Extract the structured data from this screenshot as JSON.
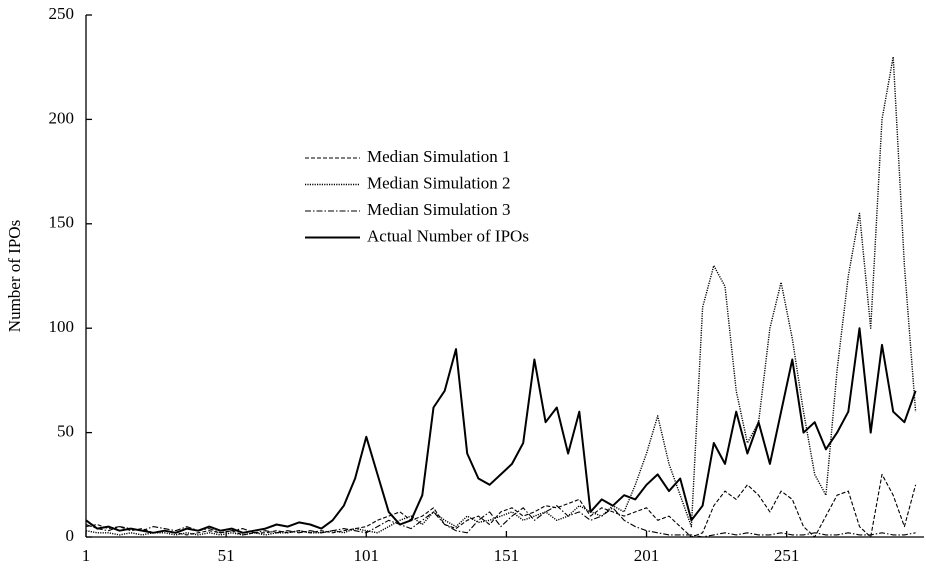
{
  "chart_data": {
    "type": "line",
    "y_label": "Number of IPOs",
    "x": [
      1,
      5,
      9,
      13,
      17,
      21,
      25,
      29,
      33,
      37,
      41,
      45,
      49,
      53,
      57,
      61,
      65,
      69,
      73,
      77,
      81,
      85,
      89,
      93,
      97,
      101,
      105,
      109,
      113,
      117,
      121,
      125,
      129,
      133,
      137,
      141,
      145,
      149,
      153,
      157,
      161,
      165,
      169,
      173,
      177,
      181,
      185,
      189,
      193,
      197,
      201,
      205,
      209,
      213,
      217,
      221,
      225,
      229,
      233,
      237,
      241,
      245,
      249,
      253,
      257,
      261,
      265,
      269,
      273,
      277,
      281,
      285,
      289,
      293,
      297
    ],
    "series": [
      {
        "name": "Median Simulation 1",
        "color": "#000000",
        "style": "dashed",
        "values": [
          5,
          6,
          4,
          5,
          3,
          4,
          2,
          3,
          2,
          1,
          2,
          3,
          2,
          3,
          1,
          2,
          2,
          3,
          2,
          3,
          2,
          3,
          2,
          3,
          4,
          5,
          8,
          10,
          12,
          8,
          10,
          14,
          6,
          4,
          8,
          10,
          6,
          12,
          14,
          10,
          12,
          15,
          14,
          16,
          18,
          10,
          14,
          12,
          10,
          12,
          14,
          8,
          10,
          5,
          0,
          2,
          15,
          22,
          18,
          25,
          20,
          12,
          22,
          18,
          5,
          0,
          10,
          20,
          22,
          5,
          0,
          30,
          20,
          5,
          25
        ]
      },
      {
        "name": "Median Simulation 2",
        "color": "#000000",
        "style": "dotted",
        "values": [
          3,
          2,
          2,
          1,
          2,
          1,
          2,
          2,
          1,
          2,
          1,
          2,
          1,
          2,
          1,
          2,
          1,
          2,
          2,
          3,
          2,
          2,
          3,
          2,
          4,
          3,
          2,
          5,
          8,
          10,
          6,
          12,
          8,
          5,
          10,
          7,
          8,
          10,
          12,
          8,
          10,
          12,
          8,
          10,
          15,
          12,
          10,
          15,
          12,
          25,
          40,
          58,
          35,
          20,
          5,
          110,
          130,
          120,
          70,
          45,
          55,
          100,
          122,
          95,
          60,
          30,
          20,
          80,
          125,
          155,
          100,
          200,
          230,
          130,
          60
        ]
      },
      {
        "name": "Median Simulation 3",
        "color": "#000000",
        "style": "dashdot",
        "values": [
          6,
          4,
          3,
          5,
          4,
          3,
          5,
          4,
          3,
          5,
          3,
          4,
          2,
          3,
          4,
          2,
          3,
          2,
          3,
          2,
          3,
          2,
          3,
          4,
          3,
          2,
          5,
          8,
          6,
          4,
          8,
          12,
          6,
          3,
          2,
          8,
          12,
          5,
          10,
          14,
          8,
          12,
          15,
          10,
          12,
          8,
          10,
          14,
          8,
          5,
          3,
          2,
          1,
          1,
          1,
          0,
          1,
          2,
          1,
          2,
          1,
          1,
          2,
          1,
          1,
          2,
          1,
          1,
          2,
          1,
          1,
          2,
          1,
          1,
          2
        ]
      },
      {
        "name": "Actual Number of IPOs",
        "color": "#000000",
        "style": "solid",
        "values": [
          8,
          4,
          5,
          3,
          4,
          3,
          2,
          3,
          2,
          4,
          3,
          5,
          3,
          4,
          2,
          3,
          4,
          6,
          5,
          7,
          6,
          4,
          8,
          15,
          28,
          48,
          30,
          12,
          6,
          8,
          20,
          62,
          70,
          90,
          40,
          28,
          25,
          30,
          35,
          45,
          85,
          55,
          62,
          40,
          60,
          12,
          18,
          15,
          20,
          18,
          25,
          30,
          22,
          28,
          8,
          15,
          45,
          35,
          60,
          40,
          55,
          35,
          60,
          85,
          50,
          55,
          42,
          50,
          60,
          100,
          50,
          92,
          60,
          55,
          70
        ]
      }
    ],
    "xlim": [
      1,
      300
    ],
    "ylim": [
      0,
      250
    ],
    "xticks": [
      1,
      51,
      101,
      151,
      201,
      251
    ],
    "yticks": [
      0,
      50,
      100,
      150,
      200,
      250
    ]
  }
}
